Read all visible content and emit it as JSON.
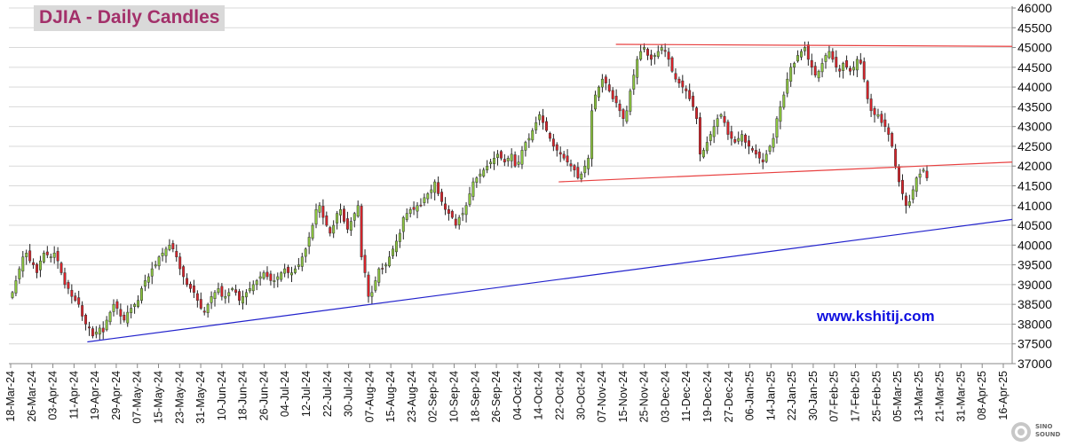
{
  "chart_data": {
    "type": "candlestick",
    "title": "DJIA - Daily Candles",
    "watermark": "www.kshitij.com",
    "logo_text": "SINO SOUND",
    "ylim": [
      37000,
      46000
    ],
    "y_ticks": [
      46000,
      45500,
      45000,
      44500,
      44000,
      43500,
      43000,
      42500,
      42000,
      41500,
      41000,
      40500,
      40000,
      39500,
      39000,
      38500,
      38000,
      37500,
      37000
    ],
    "y_tick_labels": [
      "46000",
      "45500",
      "45000",
      "44500",
      "44000",
      "43500",
      "43000",
      "42500",
      "42000",
      "41500",
      "41000",
      "40500",
      "40000",
      "39500",
      "39000",
      "38500",
      "38000",
      "37500",
      "37000"
    ],
    "x_tick_labels": [
      "18-Mar-24",
      "26-Mar-24",
      "03-Apr-24",
      "11-Apr-24",
      "19-Apr-24",
      "29-Apr-24",
      "07-May-24",
      "15-May-24",
      "23-May-24",
      "31-May-24",
      "10-Jun-24",
      "18-Jun-24",
      "26-Jun-24",
      "04-Jul-24",
      "12-Jul-24",
      "22-Jul-24",
      "30-Jul-24",
      "07-Aug-24",
      "15-Aug-24",
      "23-Aug-24",
      "02-Sep-24",
      "10-Sep-24",
      "18-Sep-24",
      "26-Sep-24",
      "04-Oct-24",
      "14-Oct-24",
      "22-Oct-24",
      "30-Oct-24",
      "07-Nov-24",
      "15-Nov-24",
      "25-Nov-24",
      "03-Dec-24",
      "11-Dec-24",
      "19-Dec-24",
      "27-Dec-24",
      "06-Jan-25",
      "14-Jan-25",
      "22-Jan-25",
      "30-Jan-25",
      "07-Feb-25",
      "17-Feb-25",
      "25-Feb-25",
      "05-Mar-25",
      "13-Mar-25",
      "21-Mar-25",
      "31-Mar-25",
      "08-Apr-25",
      "16-Apr-25"
    ],
    "closes": [
      38800,
      39100,
      39400,
      39700,
      39800,
      39600,
      39500,
      39300,
      39600,
      39800,
      39750,
      39700,
      39800,
      39600,
      39300,
      39000,
      38900,
      38700,
      38600,
      38500,
      38200,
      38000,
      37900,
      37700,
      37800,
      37900,
      37800,
      38100,
      38300,
      38500,
      38400,
      38200,
      38100,
      38300,
      38400,
      38500,
      38600,
      38900,
      39100,
      39200,
      39400,
      39500,
      39700,
      39800,
      39900,
      40000,
      39900,
      39700,
      39400,
      39200,
      39000,
      38900,
      38800,
      38600,
      38400,
      38300,
      38500,
      38700,
      38800,
      38900,
      38700,
      38700,
      38800,
      38900,
      38800,
      38600,
      38700,
      38800,
      38900,
      39000,
      39100,
      39200,
      39300,
      39200,
      39100,
      39100,
      39200,
      39300,
      39400,
      39300,
      39300,
      39400,
      39500,
      39700,
      39900,
      40200,
      40500,
      40900,
      41000,
      40700,
      40500,
      40300,
      40500,
      40800,
      40900,
      40600,
      40400,
      40600,
      40800,
      41000,
      39700,
      39300,
      38700,
      38800,
      39100,
      39400,
      39400,
      39500,
      39700,
      39900,
      40100,
      40300,
      40700,
      40800,
      40900,
      40900,
      41000,
      41000,
      41200,
      41300,
      41400,
      41600,
      41300,
      41100,
      40900,
      40800,
      40700,
      40500,
      40700,
      40800,
      41000,
      41300,
      41600,
      41700,
      41800,
      41900,
      42000,
      42100,
      42200,
      42300,
      42200,
      42100,
      42200,
      42300,
      42000,
      42100,
      42400,
      42600,
      42700,
      42900,
      43100,
      43300,
      43100,
      42900,
      42700,
      42500,
      42400,
      42300,
      42200,
      42100,
      42000,
      41900,
      41700,
      41800,
      42000,
      42200,
      43400,
      43800,
      44000,
      44200,
      44100,
      43900,
      43700,
      43600,
      43400,
      43200,
      43400,
      43900,
      44300,
      44700,
      44900,
      45000,
      44800,
      44700,
      44800,
      44900,
      45000,
      44900,
      44700,
      44400,
      44200,
      44100,
      44000,
      43900,
      43700,
      43500,
      43200,
      42300,
      42400,
      42600,
      42800,
      43000,
      43200,
      43300,
      43100,
      42800,
      42700,
      42600,
      42700,
      42800,
      42600,
      42500,
      42400,
      42300,
      42200,
      42100,
      42300,
      42500,
      42700,
      43200,
      43500,
      43800,
      44200,
      44500,
      44600,
      44800,
      44900,
      45000,
      44700,
      44500,
      44300,
      44400,
      44600,
      44800,
      44900,
      44700,
      44500,
      44400,
      44600,
      44500,
      44400,
      44500,
      44700,
      44600,
      44200,
      43700,
      43400,
      43300,
      43300,
      43100,
      43000,
      42800,
      42500,
      42000,
      41600,
      41300,
      41000,
      41100,
      41400,
      41700,
      41800,
      41900,
      41700
    ],
    "trendlines": [
      {
        "name": "upper-resistance",
        "color": "#e84040",
        "from": [
          0.605,
          45080
        ],
        "to": [
          1.0,
          45030
        ]
      },
      {
        "name": "middle-support",
        "color": "#e84040",
        "from": [
          0.548,
          41600
        ],
        "to": [
          1.0,
          42100
        ]
      },
      {
        "name": "rising-support",
        "color": "#2222cc",
        "from": [
          0.0782,
          37550
        ],
        "to": [
          1.0,
          40650
        ]
      }
    ],
    "up_color": "#8cc63f",
    "down_color": "#d9232a",
    "grid": true
  }
}
